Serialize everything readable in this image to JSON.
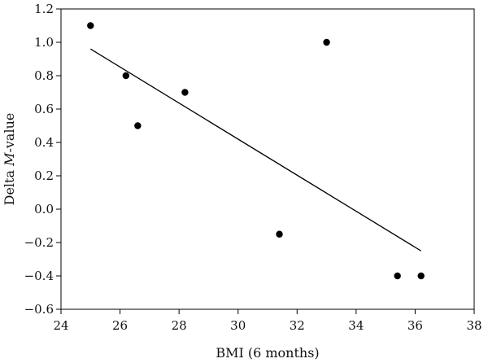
{
  "chart_data": {
    "type": "scatter",
    "title": "",
    "xlabel": "BMI (6 months)",
    "ylabel_parts": [
      "Delta ",
      "M",
      "-value"
    ],
    "xlim": [
      24,
      38
    ],
    "ylim": [
      -0.6,
      1.2
    ],
    "xticks": [
      24,
      26,
      28,
      30,
      32,
      34,
      36,
      38
    ],
    "yticks": [
      -0.6,
      -0.4,
      -0.2,
      0.0,
      0.2,
      0.4,
      0.6,
      0.8,
      1.0,
      1.2
    ],
    "yticklabels": [
      "−0.6",
      "−0.4",
      "−0.2",
      "0.0",
      "0.2",
      "0.4",
      "0.6",
      "0.8",
      "1.0",
      "1.2"
    ],
    "grid": false,
    "points": [
      {
        "x": 25.0,
        "y": 1.1
      },
      {
        "x": 26.2,
        "y": 0.8
      },
      {
        "x": 26.6,
        "y": 0.5
      },
      {
        "x": 28.2,
        "y": 0.7
      },
      {
        "x": 33.0,
        "y": 1.0
      },
      {
        "x": 31.4,
        "y": -0.15
      },
      {
        "x": 35.4,
        "y": -0.4
      },
      {
        "x": 36.2,
        "y": -0.4
      }
    ],
    "fit_line": {
      "x": [
        25.0,
        36.2
      ],
      "y": [
        0.96,
        -0.25
      ]
    },
    "colors": {
      "points": "#000000",
      "line": "#000000",
      "axes": "#000000"
    }
  }
}
